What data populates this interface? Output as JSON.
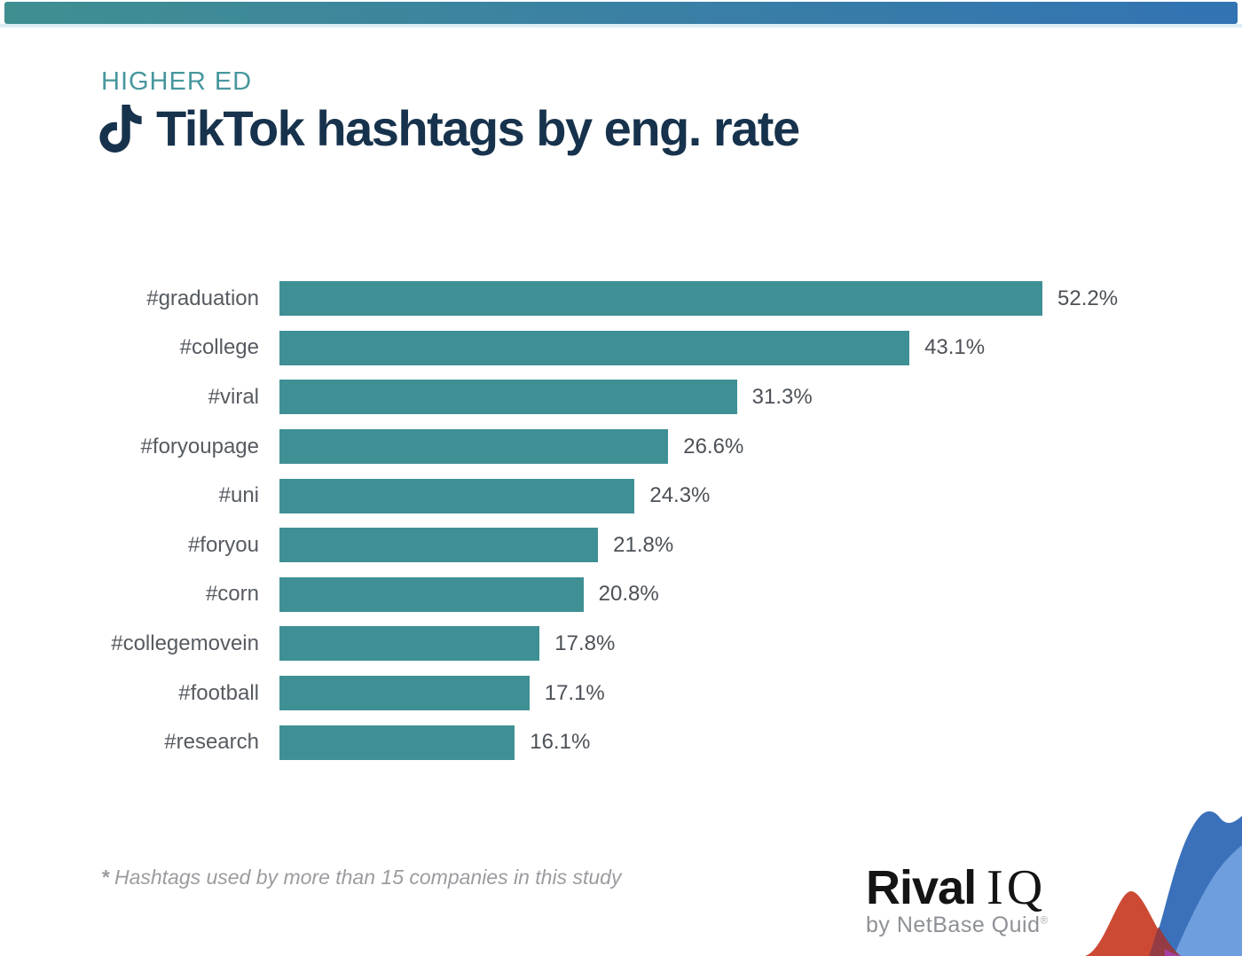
{
  "header": {
    "category": "HIGHER ED",
    "title": "TikTok hashtags by eng. rate"
  },
  "chart_data": {
    "type": "bar",
    "orientation": "horizontal",
    "title": "TikTok hashtags by eng. rate",
    "categories": [
      "#graduation",
      "#college",
      "#viral",
      "#foryoupage",
      "#uni",
      "#foryou",
      "#corn",
      "#collegemovein",
      "#football",
      "#research"
    ],
    "values": [
      52.2,
      43.1,
      31.3,
      26.6,
      24.3,
      21.8,
      20.8,
      17.8,
      17.1,
      16.1
    ],
    "value_suffix": "%",
    "xlim": [
      0,
      52.2
    ],
    "grid": false,
    "legend": false,
    "bar_color": "#3f9094",
    "label_color": "#565b61",
    "value_color": "#4c5157"
  },
  "footnote": {
    "marker": "*",
    "text": "Hashtags used by more than 15 companies in this study"
  },
  "logo": {
    "brand_bold": "Rival",
    "brand_light": "IQ",
    "byline": "by NetBase Quid",
    "registered": "®"
  },
  "colors": {
    "topbar_gradient_left": "#3f8f91",
    "topbar_gradient_right": "#3273b3",
    "eyebrow_teal": "#47979d",
    "title_navy": "#17324c",
    "curve_dark_blue": "#3a71ba",
    "curve_light_blue": "#6f9ede",
    "curve_red": "#cc4a33",
    "curve_dark_red": "#943b44",
    "curve_purple": "#a43fa5"
  }
}
